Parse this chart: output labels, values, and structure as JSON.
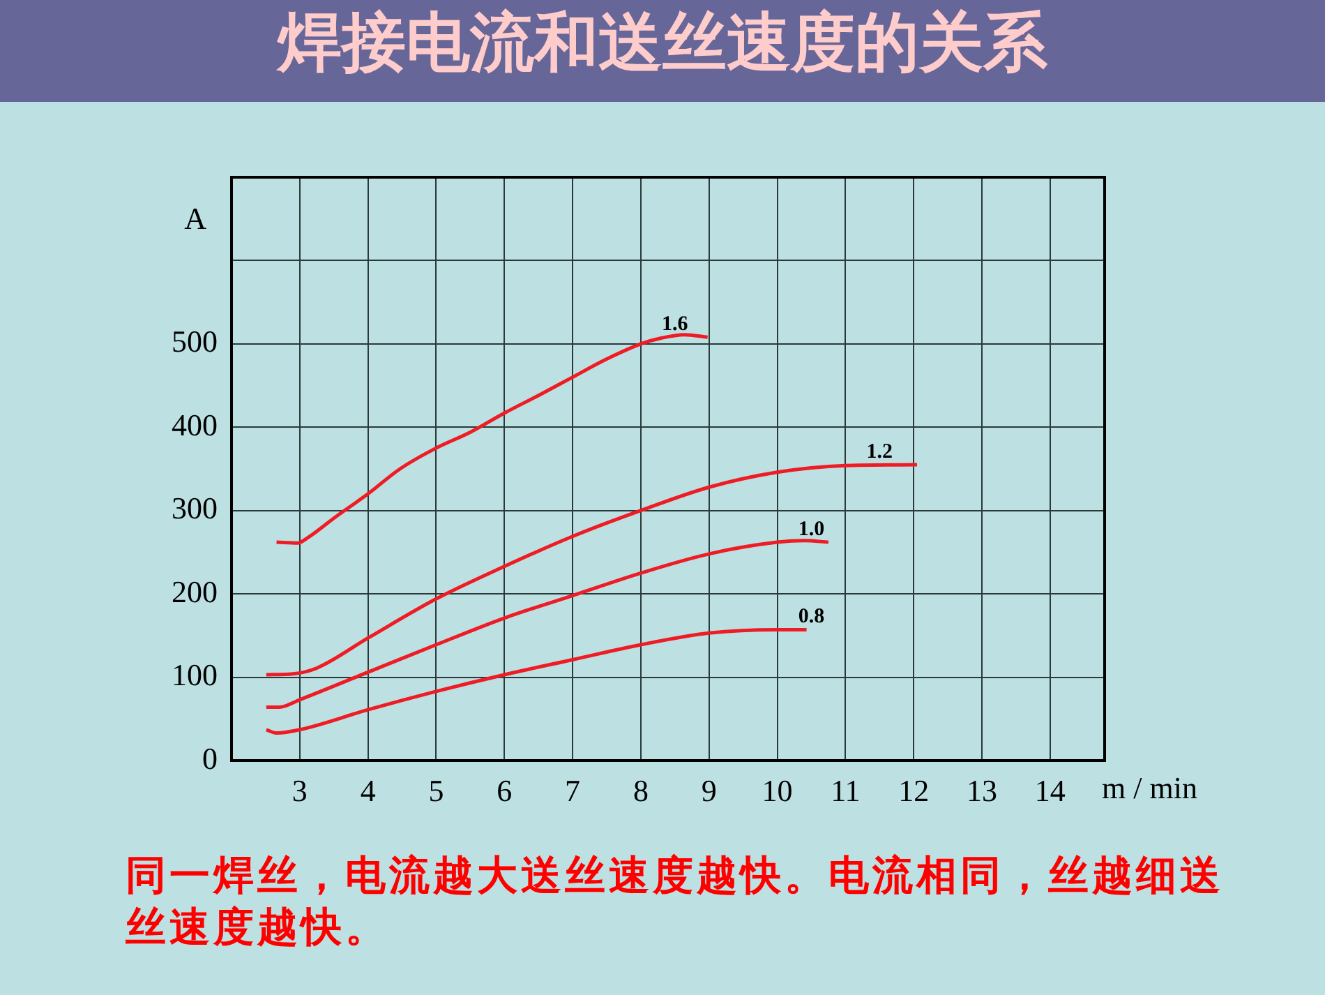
{
  "chart_data": {
    "type": "line",
    "title": "焊接电流和送丝速度的关系",
    "xlabel": "m / min",
    "ylabel": "A",
    "xlim": [
      2,
      14.8
    ],
    "xticks": [
      3,
      4,
      5,
      6,
      7,
      8,
      9,
      10,
      11,
      12,
      13,
      14
    ],
    "ylim": [
      0,
      700
    ],
    "yticks": [
      0,
      100,
      200,
      300,
      400,
      500,
      {
        "value": 600,
        "label": null
      },
      {
        "value": 700,
        "label": null
      }
    ],
    "grid": true,
    "legend": false,
    "marker": "none",
    "line_style": "solid",
    "series": [
      {
        "name": "1.6",
        "color": "#ee1c24",
        "x": [
          2.66,
          2.97,
          3.11,
          3.52,
          4.0,
          4.47,
          5.0,
          5.5,
          6.0,
          6.52,
          7.0,
          7.48,
          8.0,
          8.3,
          8.64,
          8.98
        ],
        "values": [
          262,
          261,
          267,
          292,
          320,
          350,
          375,
          394,
          417,
          439,
          460,
          481,
          500,
          507,
          511,
          508
        ]
      },
      {
        "name": "1.2",
        "color": "#ee1c24",
        "x": [
          2.51,
          2.9,
          3.25,
          4.0,
          5.0,
          6.0,
          7.0,
          8.0,
          9.0,
          10.0,
          11.0,
          12.05
        ],
        "values": [
          103,
          104,
          111,
          147,
          194,
          233,
          269,
          300,
          328,
          346,
          354,
          355
        ]
      },
      {
        "name": "1.0",
        "color": "#ee1c24",
        "x": [
          2.51,
          2.7,
          3.0,
          4.0,
          5.0,
          6.0,
          7.0,
          8.0,
          9.0,
          10.0,
          10.4,
          10.75
        ],
        "values": [
          64,
          64,
          73,
          106,
          139,
          171,
          198,
          225,
          248,
          262,
          264,
          262
        ]
      },
      {
        "name": "0.8",
        "color": "#ee1c24",
        "x": [
          2.51,
          2.66,
          3.0,
          4.0,
          5.0,
          6.0,
          7.0,
          8.0,
          9.0,
          10.0,
          10.43
        ],
        "values": [
          37,
          33,
          37,
          61,
          83,
          103,
          121,
          139,
          153,
          157,
          157
        ]
      }
    ],
    "annotations": [
      "同一焊丝，电流越大送丝速度越快。电流相同，丝越细送丝速度越快。"
    ]
  }
}
